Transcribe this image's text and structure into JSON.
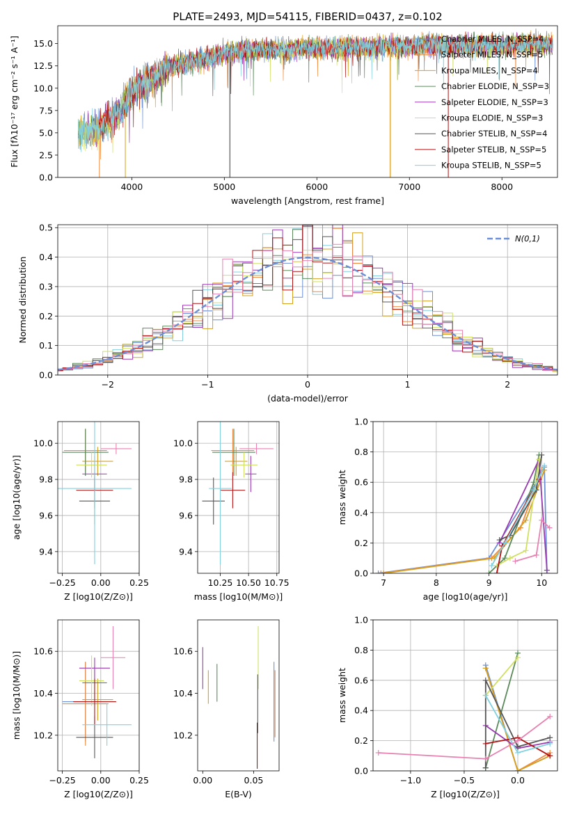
{
  "colors": [
    "#6a8fd6",
    "#f08a3a",
    "#d6a020",
    "#5a8a5a",
    "#9a3ab0",
    "#d0e060",
    "#555555",
    "#b01010",
    "#80d0e0",
    "#e880b0"
  ],
  "chart_data": [
    {
      "id": "spectrum",
      "type": "line",
      "title": "PLATE=2493, MJD=54115, FIBERID=0437, z=0.102",
      "xlabel": "wavelength [Angstrom, rest frame]",
      "ylabel": "Flux [fλ10⁻¹⁷ erg cm⁻² s⁻¹ A⁻¹]",
      "xlim": [
        3200,
        8600
      ],
      "ylim": [
        0,
        17
      ],
      "xticks": [
        4000,
        5000,
        6000,
        7000,
        8000
      ],
      "yticks": [
        0.0,
        2.5,
        5.0,
        7.5,
        10.0,
        12.5,
        15.0
      ],
      "grid": false,
      "legend_position": "right",
      "continuum": {
        "x": [
          3400,
          3600,
          3800,
          3900,
          4000,
          4100,
          4200,
          4300,
          4400,
          4600,
          4800,
          5000,
          5200,
          5400,
          5600,
          5800,
          6000,
          6200,
          6400,
          6600,
          6800,
          7000,
          7200,
          7400,
          7600,
          7800,
          8000,
          8200,
          8400,
          8550
        ],
        "y": [
          5.0,
          5.4,
          6.6,
          8.0,
          9.4,
          10.3,
          10.9,
          11.4,
          12.4,
          12.9,
          13.3,
          13.9,
          14.2,
          14.3,
          14.3,
          14.4,
          14.5,
          14.5,
          14.6,
          14.6,
          14.7,
          14.7,
          14.8,
          14.8,
          14.8,
          14.8,
          14.8,
          14.9,
          14.9,
          14.9
        ]
      },
      "series": [
        {
          "name": "Chabrier MILES, N_SSP=4"
        },
        {
          "name": "Salpeter MILES, N_SSP=5"
        },
        {
          "name": "Kroupa MILES, N_SSP=4"
        },
        {
          "name": "Chabrier ELODIE, N_SSP=3"
        },
        {
          "name": "Salpeter ELODIE, N_SSP=3"
        },
        {
          "name": "Kroupa ELODIE, N_SSP=3"
        },
        {
          "name": "Chabrier STELIB, N_SSP=4"
        },
        {
          "name": "Salpeter STELIB, N_SSP=5"
        },
        {
          "name": "Kroupa STELIB, N_SSP=5"
        }
      ]
    },
    {
      "id": "residuals",
      "type": "histogram",
      "xlabel": "(data-model)/error",
      "ylabel": "Normed distribution",
      "xlim": [
        -2.5,
        2.5
      ],
      "ylim": [
        0,
        0.51
      ],
      "xticks": [
        -2,
        -1,
        0,
        1,
        2
      ],
      "yticks": [
        0.0,
        0.1,
        0.2,
        0.3,
        0.4,
        0.5
      ],
      "grid": true,
      "legend": {
        "label": "N(0,1)",
        "position": "top-right"
      },
      "bin_width": 0.1,
      "n_series": 9
    },
    {
      "id": "age-vs-Z",
      "type": "errorbar",
      "xlabel": "Z [log10(Z/Z⊙)]",
      "ylabel": "age  [log10(age/yr)]",
      "xlim": [
        -0.28,
        0.25
      ],
      "ylim": [
        9.28,
        10.12
      ],
      "xticks": [
        -0.25,
        0.0,
        0.25
      ],
      "yticks": [
        9.4,
        9.6,
        9.8,
        10.0
      ],
      "grid": true,
      "points": [
        {
          "x": -0.1,
          "xerr": 0.15,
          "y": 9.95,
          "yerr": 0.13
        },
        {
          "x": -0.1,
          "xerr": 0.14,
          "y": 9.96,
          "yerr": 0.12
        },
        {
          "x": -0.02,
          "xerr": 0.1,
          "y": 9.9,
          "yerr": 0.08
        },
        {
          "x": -0.1,
          "xerr": 0.15,
          "y": 9.95,
          "yerr": 0.13
        },
        {
          "x": -0.04,
          "xerr": 0.08,
          "y": 9.83,
          "yerr": 0.1
        },
        {
          "x": -0.06,
          "xerr": 0.1,
          "y": 9.88,
          "yerr": 0.07
        },
        {
          "x": -0.04,
          "xerr": 0.1,
          "y": 9.68,
          "yerr": 0.13
        },
        {
          "x": -0.04,
          "xerr": 0.12,
          "y": 9.74,
          "yerr": 0.1
        },
        {
          "x": -0.04,
          "xerr": 0.24,
          "y": 9.75,
          "yerr": 0.42
        },
        {
          "x": 0.1,
          "xerr": 0.1,
          "y": 9.97,
          "yerr": 0.03
        }
      ]
    },
    {
      "id": "age-vs-mass",
      "type": "errorbar",
      "xlabel": "mass [log10(M/M⊙)]",
      "ylabel": "",
      "xlim": [
        10.05,
        10.77
      ],
      "ylim": [
        9.28,
        10.12
      ],
      "xticks": [
        10.25,
        10.5,
        10.75
      ],
      "yticks": [
        9.4,
        9.6,
        9.8,
        10.0
      ],
      "grid": true,
      "points": [
        {
          "x": 10.37,
          "xerr": 0.19,
          "y": 9.95,
          "yerr": 0.13
        },
        {
          "x": 10.36,
          "xerr": 0.19,
          "y": 9.96,
          "yerr": 0.12
        },
        {
          "x": 10.39,
          "xerr": 0.1,
          "y": 9.9,
          "yerr": 0.08
        },
        {
          "x": 10.37,
          "xerr": 0.19,
          "y": 9.95,
          "yerr": 0.13
        },
        {
          "x": 10.52,
          "xerr": 0.05,
          "y": 9.83,
          "yerr": 0.1
        },
        {
          "x": 10.46,
          "xerr": 0.12,
          "y": 9.88,
          "yerr": 0.07
        },
        {
          "x": 10.19,
          "xerr": 0.1,
          "y": 9.68,
          "yerr": 0.13
        },
        {
          "x": 10.36,
          "xerr": 0.11,
          "y": 9.74,
          "yerr": 0.1
        },
        {
          "x": 10.25,
          "xerr": 0.1,
          "y": 9.75,
          "yerr": 0.42
        },
        {
          "x": 10.57,
          "xerr": 0.15,
          "y": 9.97,
          "yerr": 0.03
        }
      ]
    },
    {
      "id": "weight-vs-age",
      "type": "line",
      "xlabel": "age  [log10(age/yr)]",
      "ylabel": "mass weight",
      "xlim": [
        6.8,
        10.3
      ],
      "ylim": [
        0,
        1
      ],
      "xticks": [
        7,
        8,
        9,
        10
      ],
      "yticks": [
        0.0,
        0.2,
        0.4,
        0.6,
        0.8,
        1.0
      ],
      "grid": true,
      "lines": [
        [
          [
            6.9,
            0.0
          ],
          [
            9.0,
            0.1
          ],
          [
            9.9,
            0.6
          ],
          [
            10.05,
            0.7
          ],
          [
            10.1,
            0.0
          ]
        ],
        [
          [
            6.95,
            0.0
          ],
          [
            9.05,
            0.1
          ],
          [
            9.6,
            0.3
          ],
          [
            10.0,
            0.68
          ]
        ],
        [
          [
            7.0,
            0.0
          ],
          [
            9.1,
            0.1
          ],
          [
            9.7,
            0.35
          ],
          [
            10.05,
            0.68
          ]
        ],
        [
          [
            9.0,
            0.0
          ],
          [
            9.3,
            0.1
          ],
          [
            9.85,
            0.6
          ],
          [
            9.95,
            0.78
          ]
        ],
        [
          [
            9.2,
            0.2
          ],
          [
            9.95,
            0.75
          ],
          [
            10.1,
            0.02
          ]
        ],
        [
          [
            9.15,
            0.05
          ],
          [
            9.4,
            0.1
          ],
          [
            9.7,
            0.15
          ],
          [
            9.95,
            0.75
          ]
        ],
        [
          [
            9.2,
            0.22
          ],
          [
            9.4,
            0.25
          ],
          [
            9.9,
            0.55
          ],
          [
            10.0,
            0.78
          ]
        ],
        [
          [
            9.15,
            0.0
          ],
          [
            9.25,
            0.18
          ],
          [
            9.95,
            0.62
          ]
        ],
        [
          [
            9.05,
            0.05
          ],
          [
            9.3,
            0.2
          ],
          [
            9.85,
            0.55
          ],
          [
            10.05,
            0.71
          ]
        ],
        [
          [
            9.5,
            0.08
          ],
          [
            9.9,
            0.12
          ],
          [
            10.0,
            0.35
          ],
          [
            10.15,
            0.3
          ]
        ]
      ]
    },
    {
      "id": "mass-vs-Z",
      "type": "errorbar",
      "xlabel": "Z [log10(Z/Z⊙)]",
      "ylabel": "mass [log10(M/M⊙)]",
      "xlim": [
        -0.28,
        0.25
      ],
      "ylim": [
        10.03,
        10.75
      ],
      "xticks": [
        -0.25,
        0.0,
        0.25
      ],
      "yticks": [
        10.2,
        10.4,
        10.6
      ],
      "grid": true,
      "points": [
        {
          "x": -0.1,
          "xerr": 0.15,
          "y": 10.36,
          "yerr": 0.19
        },
        {
          "x": -0.1,
          "xerr": 0.15,
          "y": 10.35,
          "yerr": 0.2
        },
        {
          "x": -0.02,
          "xerr": 0.1,
          "y": 10.37,
          "yerr": 0.1
        },
        {
          "x": -0.04,
          "xerr": 0.08,
          "y": 10.45,
          "yerr": 0.08
        },
        {
          "x": -0.04,
          "xerr": 0.1,
          "y": 10.52,
          "yerr": 0.05
        },
        {
          "x": -0.06,
          "xerr": 0.08,
          "y": 10.46,
          "yerr": 0.12
        },
        {
          "x": -0.04,
          "xerr": 0.12,
          "y": 10.19,
          "yerr": 0.1
        },
        {
          "x": -0.04,
          "xerr": 0.14,
          "y": 10.36,
          "yerr": 0.11
        },
        {
          "x": 0.04,
          "xerr": 0.16,
          "y": 10.25,
          "yerr": 0.1
        },
        {
          "x": 0.08,
          "xerr": 0.08,
          "y": 10.57,
          "yerr": 0.15
        }
      ]
    },
    {
      "id": "mass-vs-EBV",
      "type": "errorbar",
      "xlabel": "E(B-V)",
      "ylabel": "",
      "xlim": [
        -0.005,
        0.075
      ],
      "ylim": [
        10.03,
        10.75
      ],
      "xticks": [
        0.0,
        0.05
      ],
      "yticks": [
        10.2,
        10.4,
        10.6
      ],
      "grid": false,
      "points": [
        {
          "x": 0.07,
          "xerr": 0,
          "y": 10.36,
          "yerr": 0.19
        },
        {
          "x": 0.071,
          "xerr": 0,
          "y": 10.35,
          "yerr": 0.16
        },
        {
          "x": 0.0055,
          "xerr": 0,
          "y": 10.43,
          "yerr": 0.08
        },
        {
          "x": 0.014,
          "xerr": 0,
          "y": 10.45,
          "yerr": 0.09
        },
        {
          "x": 0.0,
          "xerr": 0,
          "y": 10.52,
          "yerr": 0.1
        },
        {
          "x": 0.0545,
          "xerr": 0,
          "y": 10.57,
          "yerr": 0.15
        },
        {
          "x": 0.054,
          "xerr": 0,
          "y": 10.35,
          "yerr": 0.14
        },
        {
          "x": 0.0535,
          "xerr": 0,
          "y": 10.15,
          "yerr": 0.11
        }
      ]
    },
    {
      "id": "weight-vs-Z",
      "type": "line",
      "xlabel": "Z [log10(Z/Z⊙)]",
      "ylabel": "mass weight",
      "xlim": [
        -1.35,
        0.37
      ],
      "ylim": [
        0,
        1
      ],
      "xticks": [
        -1.0,
        -0.5,
        0.0
      ],
      "yticks": [
        0.0,
        0.2,
        0.4,
        0.6,
        0.8,
        1.0
      ],
      "grid": true,
      "lines": [
        [
          [
            -0.3,
            0.7
          ],
          [
            0.0,
            0.0
          ],
          [
            0.3,
            0.1
          ]
        ],
        [
          [
            -0.3,
            0.68
          ],
          [
            0.0,
            0.0
          ],
          [
            0.3,
            0.12
          ]
        ],
        [
          [
            -0.3,
            0.68
          ],
          [
            0.0,
            0.0
          ],
          [
            0.3,
            0.1
          ]
        ],
        [
          [
            -0.3,
            0.02
          ],
          [
            0.0,
            0.78
          ]
        ],
        [
          [
            -0.3,
            0.3
          ],
          [
            0.0,
            0.15
          ],
          [
            0.3,
            0.19
          ]
        ],
        [
          [
            -0.3,
            0.5
          ],
          [
            0.0,
            0.75
          ]
        ],
        [
          [
            -0.3,
            0.02
          ],
          [
            -0.3,
            0.6
          ],
          [
            0.0,
            0.16
          ],
          [
            0.3,
            0.22
          ]
        ],
        [
          [
            -0.3,
            0.18
          ],
          [
            0.0,
            0.22
          ],
          [
            0.3,
            0.1
          ]
        ],
        [
          [
            -0.3,
            0.5
          ],
          [
            0.0,
            0.12
          ],
          [
            0.3,
            0.18
          ]
        ],
        [
          [
            -1.3,
            0.12
          ],
          [
            -0.3,
            0.08
          ],
          [
            0.0,
            0.2
          ],
          [
            0.3,
            0.36
          ]
        ]
      ]
    }
  ]
}
